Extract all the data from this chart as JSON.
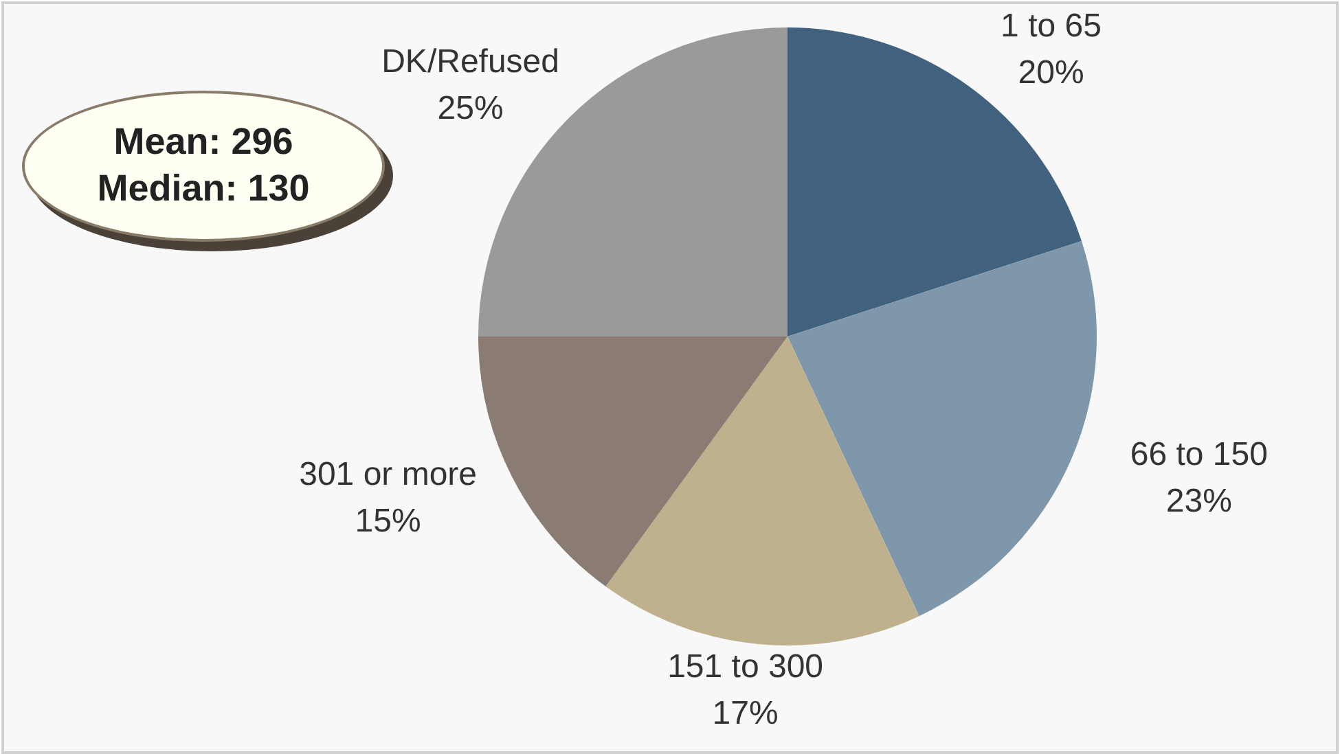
{
  "chart_data": {
    "type": "pie",
    "categories": [
      "1 to 65",
      "66 to 150",
      "151 to 300",
      "301 or more",
      "DK/Refused"
    ],
    "values": [
      20,
      23,
      17,
      15,
      25
    ],
    "colors": [
      "#41627e",
      "#7f97aa",
      "#c0b18e",
      "#8a7c72",
      "#9a9a9a"
    ],
    "value_labels": [
      "20%",
      "23%",
      "17%",
      "15%",
      "25%"
    ],
    "legend": false,
    "annotations": [
      "Mean: 296",
      "Median: 130"
    ]
  }
}
